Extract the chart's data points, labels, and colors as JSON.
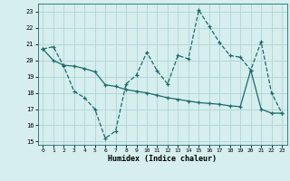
{
  "xlabel": "Humidex (Indice chaleur)",
  "background_color": "#d6eeee",
  "grid_color": "#b0d4d4",
  "line_color": "#1a6b6b",
  "xlim": [
    -0.5,
    23.5
  ],
  "ylim": [
    14.8,
    23.5
  ],
  "yticks": [
    15,
    16,
    17,
    18,
    19,
    20,
    21,
    22,
    23
  ],
  "xticks": [
    0,
    1,
    2,
    3,
    4,
    5,
    6,
    7,
    8,
    9,
    10,
    11,
    12,
    13,
    14,
    15,
    16,
    17,
    18,
    19,
    20,
    21,
    22,
    23
  ],
  "series1_x": [
    0,
    1,
    2,
    3,
    4,
    5,
    6,
    7,
    8,
    9,
    10,
    11,
    12,
    13,
    14,
    15,
    16,
    17,
    18,
    19,
    20,
    21,
    22,
    23
  ],
  "series1_y": [
    20.7,
    20.85,
    19.65,
    18.1,
    17.7,
    17.0,
    15.2,
    15.65,
    18.55,
    19.1,
    20.5,
    19.35,
    18.55,
    20.3,
    20.1,
    23.1,
    22.1,
    21.1,
    20.3,
    20.2,
    19.4,
    21.15,
    18.0,
    16.75
  ],
  "series2_x": [
    0,
    1,
    2,
    3,
    4,
    5,
    6,
    7,
    8,
    9,
    10,
    11,
    12,
    13,
    14,
    15,
    16,
    17,
    18,
    19,
    20,
    21,
    22,
    23
  ],
  "series2_y": [
    20.7,
    20.0,
    19.7,
    19.65,
    19.5,
    19.3,
    18.5,
    18.4,
    18.2,
    18.1,
    18.0,
    17.85,
    17.7,
    17.6,
    17.5,
    17.4,
    17.35,
    17.3,
    17.2,
    17.15,
    19.4,
    17.0,
    16.75,
    16.75
  ]
}
